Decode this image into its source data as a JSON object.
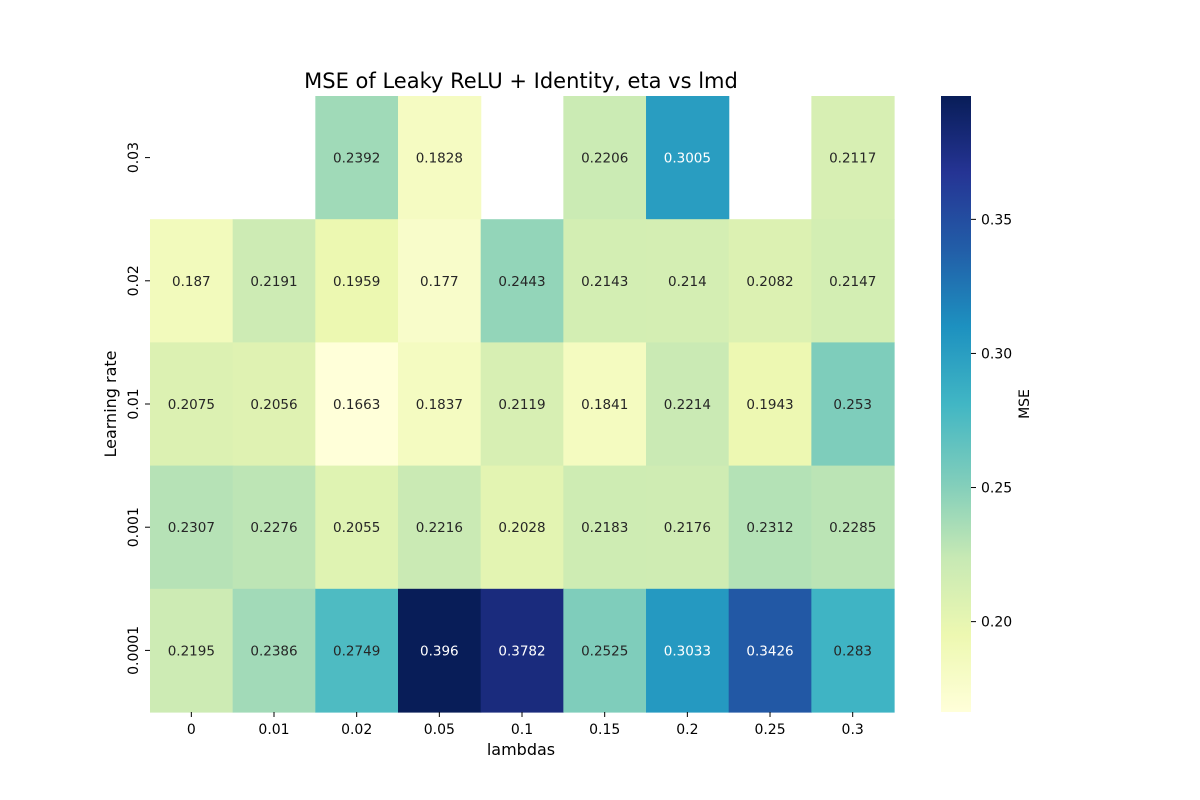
{
  "chart_data": {
    "type": "heatmap",
    "title": "MSE of Leaky ReLU + Identity, eta vs lmd",
    "xlabel": "lambdas",
    "ylabel": "Learning rate",
    "x_categories": [
      "0",
      "0.01",
      "0.02",
      "0.05",
      "0.1",
      "0.15",
      "0.2",
      "0.25",
      "0.3"
    ],
    "y_categories": [
      "0.03",
      "0.02",
      "0.01",
      "0.001",
      "0.0001"
    ],
    "values": [
      [
        null,
        null,
        0.2392,
        0.1828,
        null,
        0.2206,
        0.3005,
        null,
        0.2117
      ],
      [
        0.187,
        0.2191,
        0.1959,
        0.177,
        0.2443,
        0.2143,
        0.214,
        0.2082,
        0.2147
      ],
      [
        0.2075,
        0.2056,
        0.1663,
        0.1837,
        0.2119,
        0.1841,
        0.2214,
        0.1943,
        0.253
      ],
      [
        0.2307,
        0.2276,
        0.2055,
        0.2216,
        0.2028,
        0.2183,
        0.2176,
        0.2312,
        0.2285
      ],
      [
        0.2195,
        0.2386,
        0.2749,
        0.396,
        0.3782,
        0.2525,
        0.3033,
        0.3426,
        0.283
      ]
    ],
    "value_labels": [
      [
        "",
        "",
        "0.2392",
        "0.1828",
        "",
        "0.2206",
        "0.3005",
        "",
        "0.2117"
      ],
      [
        "0.187",
        "0.2191",
        "0.1959",
        "0.177",
        "0.2443",
        "0.2143",
        "0.214",
        "0.2082",
        "0.2147"
      ],
      [
        "0.2075",
        "0.2056",
        "0.1663",
        "0.1837",
        "0.2119",
        "0.1841",
        "0.2214",
        "0.1943",
        "0.253"
      ],
      [
        "0.2307",
        "0.2276",
        "0.2055",
        "0.2216",
        "0.2028",
        "0.2183",
        "0.2176",
        "0.2312",
        "0.2285"
      ],
      [
        "0.2195",
        "0.2386",
        "0.2749",
        "0.396",
        "0.3782",
        "0.2525",
        "0.3033",
        "0.3426",
        "0.283"
      ]
    ],
    "colorbar": {
      "label": "MSE",
      "colormap": "YlGnBu",
      "vmin": 0.1663,
      "vmax": 0.396,
      "ticks": [
        0.2,
        0.25,
        0.3,
        0.35
      ],
      "tick_labels": [
        "0.20",
        "0.25",
        "0.30",
        "0.35"
      ]
    },
    "colormap_stops": [
      "#ffffd9",
      "#edf8b1",
      "#c7e9b4",
      "#7fcdbb",
      "#41b6c4",
      "#1d91c0",
      "#225ea8",
      "#253494",
      "#081d58"
    ]
  }
}
